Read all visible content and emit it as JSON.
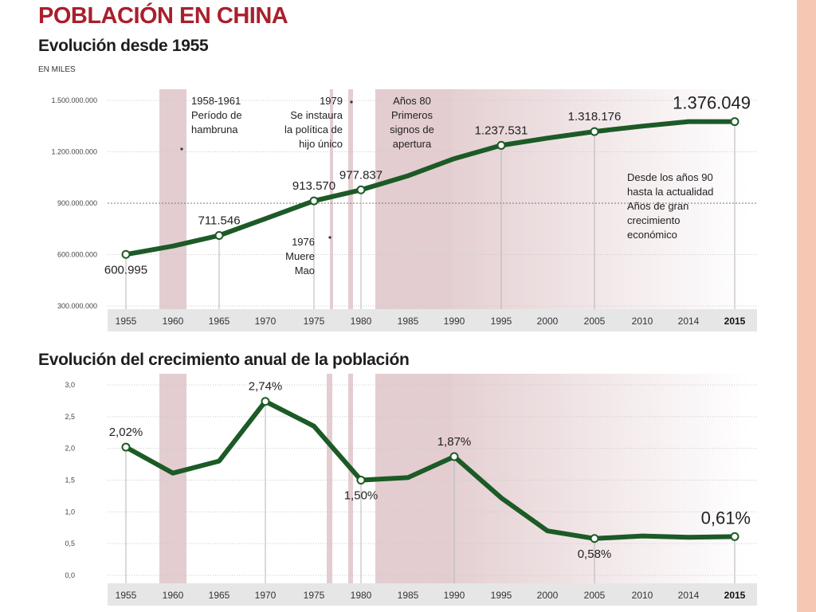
{
  "title": "POBLACIÓN EN CHINA",
  "chart_data": [
    {
      "type": "line",
      "title": "Evolución desde 1955",
      "ylabel": "EN MILES",
      "ylim": [
        300000000,
        1500000000
      ],
      "yticks": [
        "1.500.000.000",
        "1.200.000.000",
        "900.000.000",
        "600.000.000",
        "300.000.000"
      ],
      "ytick_values": [
        1500000000,
        1200000000,
        900000000,
        600000000,
        300000000
      ],
      "x_labels": [
        "1955",
        "1960",
        "1965",
        "1970",
        "1975",
        "1980",
        "1985",
        "1990",
        "1995",
        "2000",
        "2005",
        "2010",
        "2014",
        "2015"
      ],
      "series": [
        {
          "values": [
            600995000,
            650000000,
            711546000,
            810000000,
            913570000,
            977837000,
            1060000000,
            1160000000,
            1237531000,
            1280000000,
            1318176000,
            1350000000,
            1376049000,
            1376049000
          ],
          "markers": [
            0,
            2,
            4,
            5,
            8,
            10,
            13
          ]
        }
      ],
      "data_labels": [
        {
          "index": 0,
          "text": "600.995",
          "pos": "below"
        },
        {
          "index": 2,
          "text": "711.546",
          "pos": "above"
        },
        {
          "index": 4,
          "text": "913.570",
          "pos": "above"
        },
        {
          "index": 5,
          "text": "977.837",
          "pos": "above"
        },
        {
          "index": 8,
          "text": "1.237.531",
          "pos": "above"
        },
        {
          "index": 10,
          "text": "1.318.176",
          "pos": "above"
        },
        {
          "index": 13,
          "text": "1.376.049",
          "pos": "above",
          "big": true
        }
      ],
      "annotations": [
        {
          "name": "annotation-hambruna",
          "lines": [
            "1958-1961",
            "Período de",
            "hambruna"
          ],
          "align": "left"
        },
        {
          "name": "annotation-hijo-unico",
          "lines": [
            "1979",
            "Se instaura",
            "la política de",
            "hijo único"
          ],
          "align": "right"
        },
        {
          "name": "annotation-apertura",
          "lines": [
            "Años 80",
            "Primeros",
            "signos de",
            "apertura"
          ],
          "align": "middle"
        },
        {
          "name": "annotation-mao",
          "lines": [
            "1976",
            "Muere",
            "Mao"
          ],
          "align": "right"
        },
        {
          "name": "annotation-crecimiento",
          "lines": [
            "Desde los años 90",
            "hasta la actualidad",
            "Años de gran",
            "crecimiento",
            "económico"
          ],
          "align": "left"
        }
      ]
    },
    {
      "type": "line",
      "title": "Evolución del crecimiento anual de la población",
      "ylim": [
        0,
        3
      ],
      "yticks": [
        "3,0",
        "2,5",
        "2,0",
        "1,5",
        "1,0",
        "0,5",
        "0,0"
      ],
      "ytick_values": [
        3,
        2.5,
        2,
        1.5,
        1,
        0.5,
        0
      ],
      "x_labels": [
        "1955",
        "1960",
        "1965",
        "1970",
        "1975",
        "1980",
        "1985",
        "1990",
        "1995",
        "2000",
        "2005",
        "2010",
        "2014",
        "2015"
      ],
      "series": [
        {
          "values": [
            2.02,
            1.61,
            1.8,
            2.74,
            2.35,
            1.5,
            1.54,
            1.87,
            1.22,
            0.7,
            0.58,
            0.62,
            0.6,
            0.61
          ],
          "markers": [
            0,
            3,
            5,
            7,
            10,
            13
          ]
        }
      ],
      "data_labels": [
        {
          "index": 0,
          "text": "2,02%",
          "pos": "above"
        },
        {
          "index": 3,
          "text": "2,74%",
          "pos": "above"
        },
        {
          "index": 5,
          "text": "1,50%",
          "pos": "below"
        },
        {
          "index": 7,
          "text": "1,87%",
          "pos": "above"
        },
        {
          "index": 10,
          "text": "0,58%",
          "pos": "below"
        },
        {
          "index": 13,
          "text": "0,61%",
          "pos": "above",
          "big": true
        }
      ]
    }
  ],
  "colors": {
    "line": "#1c5a26",
    "title": "#a8202c",
    "shade": "#e3cdd0",
    "axis_band": "#e6e6e6",
    "accent_strip": "#f6c7b3"
  }
}
